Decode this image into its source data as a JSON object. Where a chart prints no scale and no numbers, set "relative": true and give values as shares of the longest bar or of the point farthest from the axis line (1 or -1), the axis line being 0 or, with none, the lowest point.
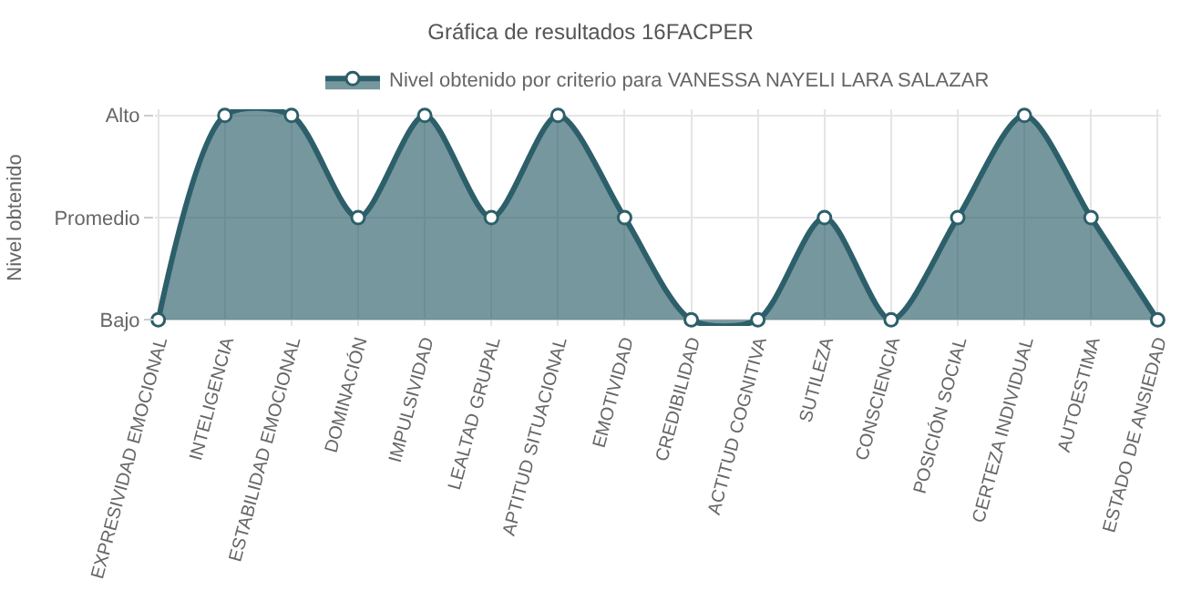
{
  "chart_data": {
    "type": "area",
    "title": "Gráfica de resultados 16FACPER",
    "ylabel": "Nivel obtenido",
    "categories": [
      "EXPRESIVIDAD EMOCIONAL",
      "INTELIGENCIA",
      "ESTABILIDAD EMOCIONAL",
      "DOMINACIÓN",
      "IMPULSIVIDAD",
      "LEALTAD GRUPAL",
      "APTITUD SITUACIONAL",
      "EMOTIVIDAD",
      "CREDIBILIDAD",
      "ACTITUD COGNITIVA",
      "SUTILEZA",
      "CONSCIENCIA",
      "POSICIÓN SOCIAL",
      "CERTEZA INDIVIDUAL",
      "AUTOESTIMA",
      "ESTADO DE ANSIEDAD"
    ],
    "series": [
      {
        "name": "Nivel obtenido por criterio para VANESSA NAYELI LARA SALAZAR",
        "color": "#2c5f6a",
        "values": [
          0,
          1,
          1,
          0.5,
          1,
          0.5,
          1,
          0.5,
          0,
          0,
          0.5,
          0,
          0.5,
          1,
          0.5,
          0
        ]
      }
    ],
    "relative": true,
    "y_categories": [
      "Alto",
      "Promedio",
      "Bajo"
    ],
    "grid": true,
    "legend": "top",
    "marker": "circle",
    "line_style": "solid"
  }
}
